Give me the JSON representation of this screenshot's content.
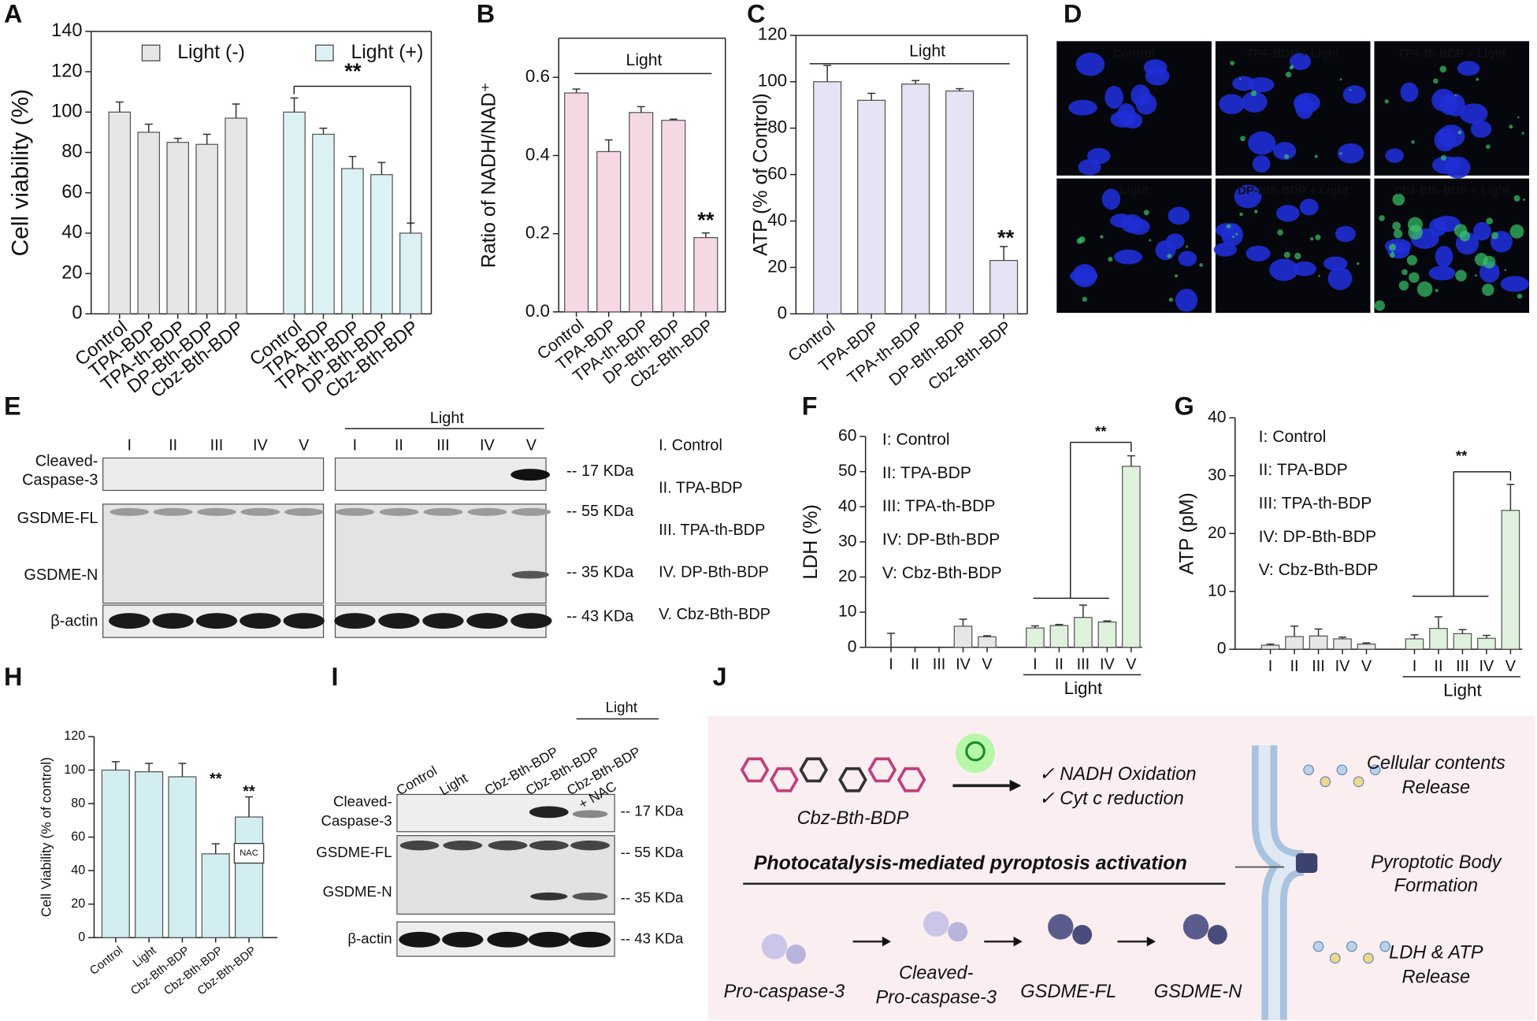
{
  "chart_data": [
    {
      "type": "bar",
      "panel": "A",
      "ylabel": "Cell viability (%)",
      "ylim": [
        0,
        140
      ],
      "yticks": [
        0,
        20,
        40,
        60,
        80,
        100,
        120,
        140
      ],
      "categories": [
        "Control",
        "TPA-BDP",
        "TPA-th-BDP",
        "DP-Bth-BDP",
        "Cbz-Bth-BDP",
        "Control",
        "TPA-BDP",
        "TPA-th-BDP",
        "DP-Bth-BDP",
        "Cbz-Bth-BDP"
      ],
      "series": [
        {
          "name": "Light (-)",
          "color": "#e6e6e6",
          "values": [
            100,
            90,
            85,
            84,
            97,
            null,
            null,
            null,
            null,
            null
          ],
          "errors": [
            5,
            4,
            2,
            5,
            7,
            null,
            null,
            null,
            null,
            null
          ]
        },
        {
          "name": "Light (+)",
          "color": "#dcf1f4",
          "values": [
            null,
            null,
            null,
            null,
            null,
            100,
            89,
            72,
            69,
            40
          ],
          "errors": [
            null,
            null,
            null,
            null,
            null,
            7,
            3,
            6,
            6,
            5
          ]
        }
      ],
      "annotations": [
        "**"
      ]
    },
    {
      "type": "bar",
      "panel": "B",
      "ylabel": "Ratio of NADH/NAD⁺",
      "ylim": [
        0,
        0.7
      ],
      "yticks": [
        {
          "value": 0,
          "label": "0.0"
        },
        0.2,
        0.4,
        0.6
      ],
      "categories": [
        "Control",
        "TPA-BDP",
        "TPA-th-BDP",
        "DP-Bth-BDP",
        "Cbz-Bth-BDP"
      ],
      "values": [
        0.56,
        0.41,
        0.51,
        0.49,
        0.19
      ],
      "errors": [
        0.01,
        0.03,
        0.015,
        0.003,
        0.012
      ],
      "color": "#f6d8e4",
      "group_label": "Light",
      "annotations": [
        "**"
      ]
    },
    {
      "type": "bar",
      "panel": "C",
      "ylabel": "ATP (% of Control)",
      "ylim": [
        0,
        120
      ],
      "yticks": [
        0,
        20,
        40,
        60,
        80,
        100,
        120
      ],
      "categories": [
        "Control",
        "TPA-BDP",
        "TPA-th-BDP",
        "DP-Bth-BDP",
        "Cbz-Bth-BDP"
      ],
      "values": [
        100,
        92,
        99,
        96,
        23
      ],
      "errors": [
        7,
        3,
        1.5,
        1,
        6
      ],
      "color": "#e4e4f4",
      "group_label": "Light",
      "annotations": [
        "**"
      ]
    },
    {
      "type": "bar",
      "panel": "F",
      "ylabel": "LDH (%)",
      "ylim": [
        0,
        60
      ],
      "yticks": [
        0,
        10,
        20,
        30,
        40,
        50,
        60
      ],
      "categories": [
        "I",
        "II",
        "III",
        "IV",
        "V",
        "I",
        "II",
        "III",
        "IV",
        "V"
      ],
      "values": [
        0,
        0,
        0,
        6,
        3,
        5.5,
        6.2,
        8.5,
        7.2,
        51.5
      ],
      "errors": [
        4,
        0,
        0,
        2,
        0.3,
        0.6,
        0.3,
        3.5,
        0.3,
        3
      ],
      "colors": [
        "#e6e6e6",
        "#e6e6e6",
        "#e6e6e6",
        "#e6e6e6",
        "#e6e6e6",
        "#dff0dc",
        "#dff0dc",
        "#dff0dc",
        "#dff0dc",
        "#dff0dc"
      ],
      "group_label": "Light",
      "key": [
        "I: Control",
        "II: TPA-BDP",
        "III: TPA-th-BDP",
        "IV: DP-Bth-BDP",
        "V: Cbz-Bth-BDP"
      ],
      "annotations": [
        "**"
      ]
    },
    {
      "type": "bar",
      "panel": "G",
      "ylabel": "ATP (pM)",
      "ylim": [
        0,
        40
      ],
      "yticks": [
        0,
        10,
        20,
        30,
        40
      ],
      "categories": [
        "I",
        "II",
        "III",
        "IV",
        "V",
        "I",
        "II",
        "III",
        "IV",
        "V"
      ],
      "values": [
        0.7,
        2.2,
        2.3,
        1.8,
        0.9,
        1.8,
        3.6,
        2.7,
        1.9,
        24
      ],
      "errors": [
        0.2,
        1.8,
        1.2,
        0.3,
        0.2,
        0.7,
        2,
        0.7,
        0.5,
        4.5
      ],
      "colors": [
        "#e6e6e6",
        "#e6e6e6",
        "#e6e6e6",
        "#e6e6e6",
        "#e6e6e6",
        "#dff0dc",
        "#dff0dc",
        "#dff0dc",
        "#dff0dc",
        "#dff0dc"
      ],
      "group_label": "Light",
      "key": [
        "I: Control",
        "II: TPA-BDP",
        "III: TPA-th-BDP",
        "IV: DP-Bth-BDP",
        "V: Cbz-Bth-BDP"
      ],
      "annotations": [
        "**"
      ]
    },
    {
      "type": "bar",
      "panel": "H",
      "ylabel": "Cell Viability (% of control)",
      "ylim": [
        0,
        120
      ],
      "yticks": [
        0,
        20,
        40,
        60,
        80,
        100,
        120
      ],
      "categories": [
        "Control",
        "Light",
        "Cbz-Bth-BDP",
        "Cbz-Bth-BDP",
        "Cbz-Bth-BDP"
      ],
      "values": [
        100,
        99,
        96,
        50,
        72
      ],
      "errors": [
        5,
        5,
        8,
        6,
        12
      ],
      "color": "#d2eef0",
      "annotations": [
        "**",
        "**",
        "NAC"
      ]
    }
  ],
  "panel_d": {
    "label": "D",
    "images": [
      "Control",
      "TPA-BDP + Light",
      "TPA-th-BDP + Light",
      "Light",
      "DP-Bth-BDP + Light",
      "Cbz-Bth-BDP + Light"
    ]
  },
  "panel_e": {
    "label": "E",
    "lanes": [
      "I",
      "II",
      "III",
      "IV",
      "V"
    ],
    "group": "Light",
    "rows": [
      [
        "Cleaved-",
        "Caspase-3"
      ],
      [
        "GSDME-FL"
      ],
      [
        "GSDME-N"
      ],
      [
        "β-actin"
      ]
    ],
    "markers": [
      "-- 17 KDa",
      "-- 55 KDa",
      "-- 35 KDa",
      "-- 43 KDa"
    ],
    "key": [
      "I. Control",
      "II. TPA-BDP",
      "III. TPA-th-BDP",
      "IV. DP-Bth-BDP",
      "V. Cbz-Bth-BDP"
    ]
  },
  "panel_i": {
    "label": "I",
    "lanes": [
      "Control",
      "Light",
      "Cbz-Bth-BDP",
      "Cbz-Bth-BDP",
      "Cbz-Bth-BDP"
    ],
    "lane_note": "+ NAC",
    "group": "Light",
    "rows": [
      [
        "Cleaved-",
        "Caspase-3"
      ],
      [
        "GSDME-FL"
      ],
      [
        "GSDME-N"
      ],
      [
        "β-actin"
      ]
    ],
    "markers": [
      "-- 17 KDa",
      "-- 55 KDa",
      "-- 35 KDa",
      "-- 43 KDa"
    ]
  },
  "panel_j": {
    "label": "J",
    "compound": "Cbz-Bth-BDP",
    "effects": [
      "✓  NADH Oxidation",
      "✓  Cyt c reduction"
    ],
    "title": "Photocatalysis-mediated pyroptosis activation",
    "steps": [
      [
        "Pro-caspase-3"
      ],
      [
        "Cleaved-",
        "Pro-caspase-3"
      ],
      [
        "GSDME-FL"
      ],
      [
        "GSDME-N"
      ]
    ],
    "outcomes": [
      [
        "Cellular contents",
        "Release"
      ],
      [
        "Pyroptotic Body",
        "Formation"
      ],
      [
        "LDH & ATP",
        "Release"
      ]
    ]
  }
}
